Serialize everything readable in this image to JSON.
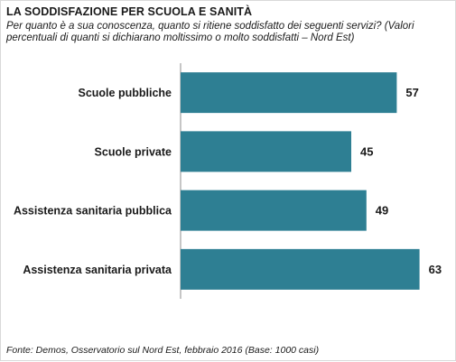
{
  "title": "LA SODDISFAZIONE PER SCUOLA E SANITÀ",
  "subtitle": "Per quanto è a sua conoscenza, quanto si ritiene soddisfatto dei seguenti servizi? (Valori percentuali di quanti si dichiarano moltissimo o molto soddisfatti – Nord Est)",
  "source": "Fonte: Demos, Osservatorio sul Nord Est, febbraio 2016 (Base: 1000 casi)",
  "colors": {
    "bar": "#2e7f93",
    "axis": "#8c8c8c",
    "text": "#1a1a1a"
  },
  "chart_data": {
    "type": "bar",
    "orientation": "horizontal",
    "categories": [
      "Scuole pubbliche",
      "Scuole private",
      "Assistenza sanitaria pubblica",
      "Assistenza sanitaria privata"
    ],
    "values": [
      57,
      45,
      49,
      63
    ],
    "xlim": [
      0,
      70
    ],
    "grid": false,
    "legend": "none"
  }
}
